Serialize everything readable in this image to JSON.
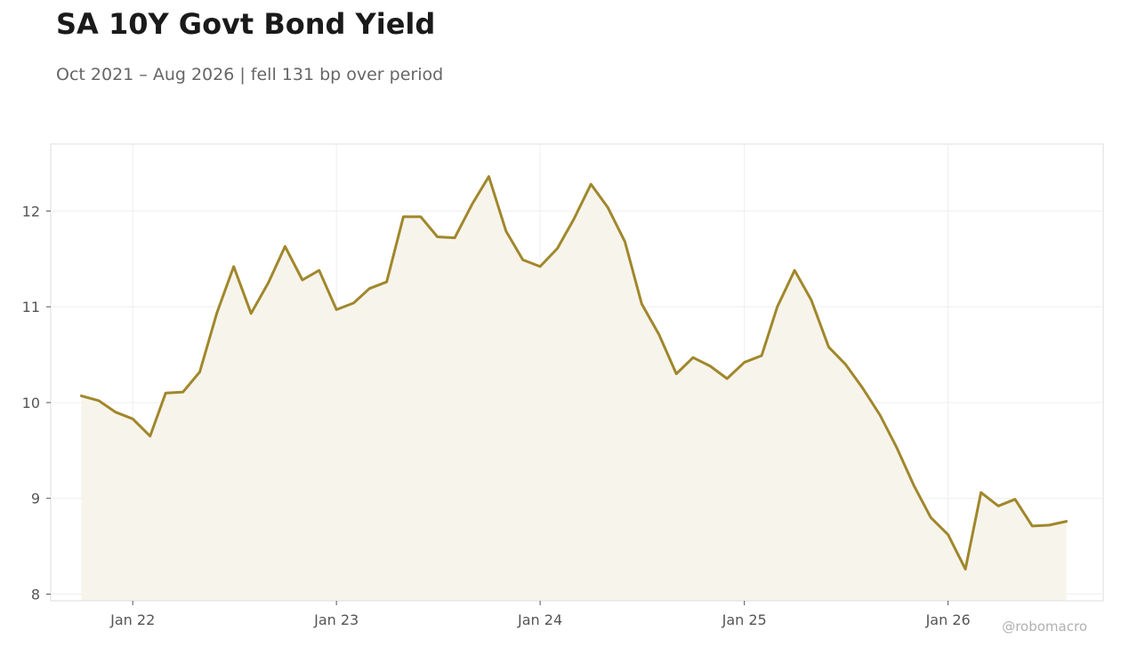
{
  "title": "SA 10Y Govt Bond Yield",
  "subtitle": "Oct 2021 – Aug 2026 | fell 131 bp over period",
  "watermark": "@robomacro",
  "colors": {
    "line": "#a0872b",
    "fill": "#f7f4ec",
    "grid": "#eeeeee",
    "frame": "#dddddd"
  },
  "chart_data": {
    "type": "area",
    "title": "SA 10Y Govt Bond Yield",
    "subtitle": "Oct 2021 – Aug 2026 | fell 131 bp over period",
    "xlabel": "",
    "ylabel": "",
    "ylim": [
      7.93,
      12.7
    ],
    "xlim": [
      "2021-08-07",
      "2026-10-06"
    ],
    "grid": true,
    "legend": "none",
    "x_ticks": [
      {
        "date": "2022-01-01",
        "label": "Jan 22"
      },
      {
        "date": "2023-01-01",
        "label": "Jan 23"
      },
      {
        "date": "2024-01-01",
        "label": "Jan 24"
      },
      {
        "date": "2025-01-01",
        "label": "Jan 25"
      },
      {
        "date": "2026-01-01",
        "label": "Jan 26"
      }
    ],
    "y_ticks": [
      8,
      9,
      10,
      11,
      12
    ],
    "series": [
      {
        "x": [
          "2021-10",
          "2021-11",
          "2021-12",
          "2022-01",
          "2022-02",
          "2022-03",
          "2022-04",
          "2022-05",
          "2022-06",
          "2022-07",
          "2022-08",
          "2022-09",
          "2022-10",
          "2022-11",
          "2022-12",
          "2023-01",
          "2023-02",
          "2023-03",
          "2023-04",
          "2023-05",
          "2023-06",
          "2023-07",
          "2023-08",
          "2023-09",
          "2023-10",
          "2023-11",
          "2023-12",
          "2024-01",
          "2024-02",
          "2024-03",
          "2024-04",
          "2024-05",
          "2024-06",
          "2024-07",
          "2024-08",
          "2024-09",
          "2024-10",
          "2024-11",
          "2024-12",
          "2025-01",
          "2025-02",
          "2025-03",
          "2025-04",
          "2025-05",
          "2025-06",
          "2025-07",
          "2025-08",
          "2025-09",
          "2025-10",
          "2025-11",
          "2025-12",
          "2026-01",
          "2026-02",
          "2026-03",
          "2026-04",
          "2026-05",
          "2026-06",
          "2026-07",
          "2026-08"
        ],
        "y": [
          10.07,
          10.02,
          9.9,
          9.83,
          9.65,
          10.1,
          10.11,
          10.32,
          10.94,
          11.42,
          10.93,
          11.25,
          11.63,
          11.28,
          11.38,
          10.97,
          11.04,
          11.19,
          11.26,
          11.94,
          11.94,
          11.73,
          11.72,
          12.07,
          12.36,
          11.79,
          11.49,
          11.42,
          11.61,
          11.91,
          12.28,
          12.04,
          11.68,
          11.03,
          10.71,
          10.3,
          10.47,
          10.38,
          10.25,
          10.42,
          10.49,
          11.0,
          11.38,
          11.07,
          10.58,
          10.4,
          10.15,
          9.87,
          9.53,
          9.13,
          8.8,
          8.62,
          8.26,
          9.06,
          8.92,
          8.99,
          8.71,
          8.72,
          8.76
        ]
      }
    ]
  }
}
